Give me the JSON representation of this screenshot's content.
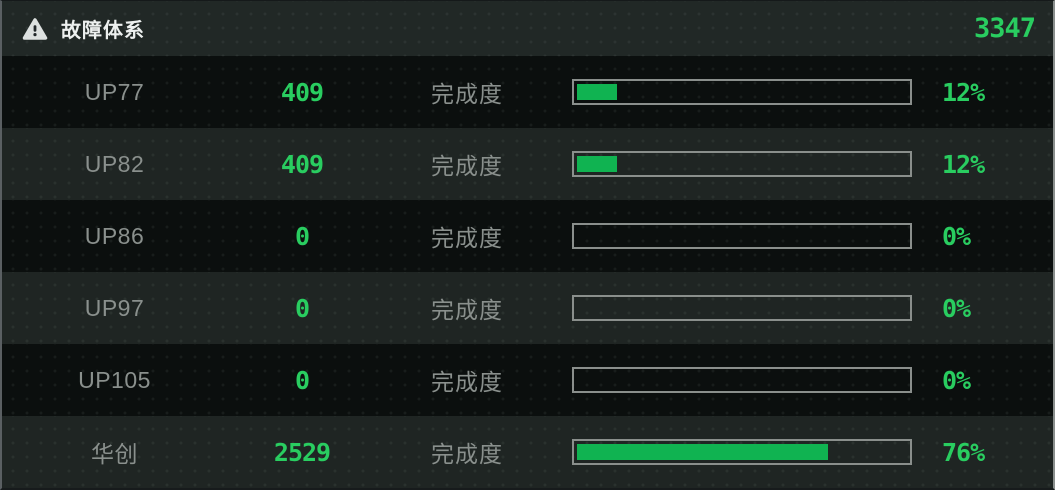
{
  "header": {
    "title": "故障体系",
    "total": "3347"
  },
  "rows": [
    {
      "name": "UP77",
      "value": "409",
      "progress_label": "完成度",
      "percent_text": "12%",
      "percent": 12
    },
    {
      "name": "UP82",
      "value": "409",
      "progress_label": "完成度",
      "percent_text": "12%",
      "percent": 12
    },
    {
      "name": "UP86",
      "value": "0",
      "progress_label": "完成度",
      "percent_text": "0%",
      "percent": 0
    },
    {
      "name": "UP97",
      "value": "0",
      "progress_label": "完成度",
      "percent_text": "0%",
      "percent": 0
    },
    {
      "name": "UP105",
      "value": "0",
      "progress_label": "完成度",
      "percent_text": "0%",
      "percent": 0
    },
    {
      "name": "华创",
      "value": "2529",
      "progress_label": "完成度",
      "percent_text": "76%",
      "percent": 76
    }
  ],
  "colors": {
    "accent_green": "#29cd60",
    "bar_fill_green": "#10b351",
    "row_dark_bg": "#0b0f0e",
    "row_light_bg": "#1f2523",
    "header_bg": "#212826",
    "muted_text": "#8a908d",
    "bar_border": "#8a8f8c"
  }
}
